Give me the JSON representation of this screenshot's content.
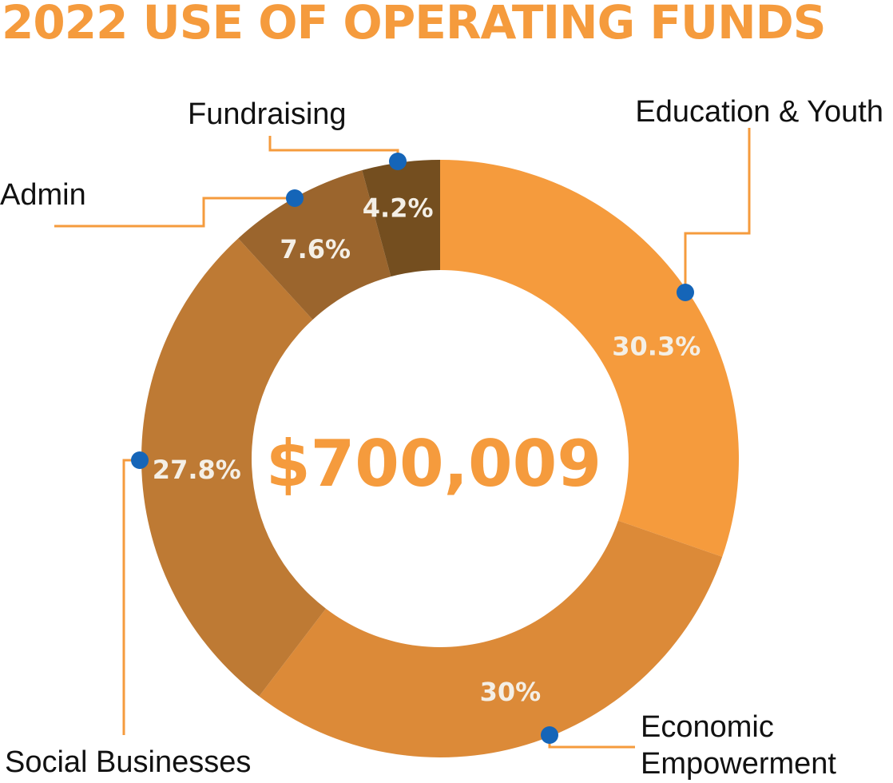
{
  "title": "2022 USE OF OPERATING FUNDS",
  "chart_data": {
    "type": "pie",
    "donut": true,
    "title": "2022 USE OF OPERATING FUNDS",
    "center_text": "$700,009",
    "legend": "none",
    "slices": [
      {
        "label": "Education & Youth",
        "value": 30.3,
        "display": "30.3%",
        "color": "#F59B3D"
      },
      {
        "label": "Economic Empowerment",
        "display_lines": [
          "Economic",
          "Empowerment"
        ],
        "value": 30,
        "display": "30%",
        "color": "#DC8A38"
      },
      {
        "label": "Social Businesses",
        "value": 27.8,
        "display": "27.8%",
        "color": "#BE7A34"
      },
      {
        "label": "Admin",
        "value": 7.6,
        "display": "7.6%",
        "color": "#9B652D"
      },
      {
        "label": "Fundraising",
        "value": 4.2,
        "display": "4.2%",
        "color": "#744E1F"
      }
    ],
    "leader_color": "#F59B3D",
    "marker_color": "#1565B8"
  }
}
